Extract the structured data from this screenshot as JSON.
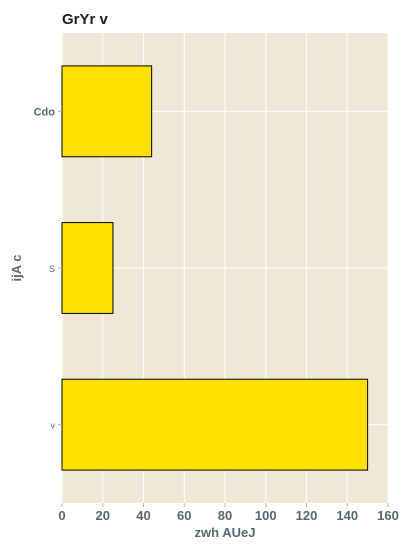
{
  "chart_data": {
    "type": "bar",
    "orientation": "horizontal",
    "title": "GrYr  v",
    "xlabel": "zwh AUeJ",
    "ylabel": "ijA c",
    "categories": [
      "Cdo",
      "S",
      "v"
    ],
    "values": [
      44,
      25,
      150
    ],
    "xlim": [
      0,
      160
    ],
    "xticks": [
      0,
      20,
      40,
      60,
      80,
      100,
      120,
      140,
      160
    ],
    "grid": true,
    "colors": {
      "bar": "#ffe000",
      "bar_edge": "#000000",
      "plot_background": "#efe8d6",
      "grid": "#ffffff",
      "text": "#546872"
    }
  }
}
